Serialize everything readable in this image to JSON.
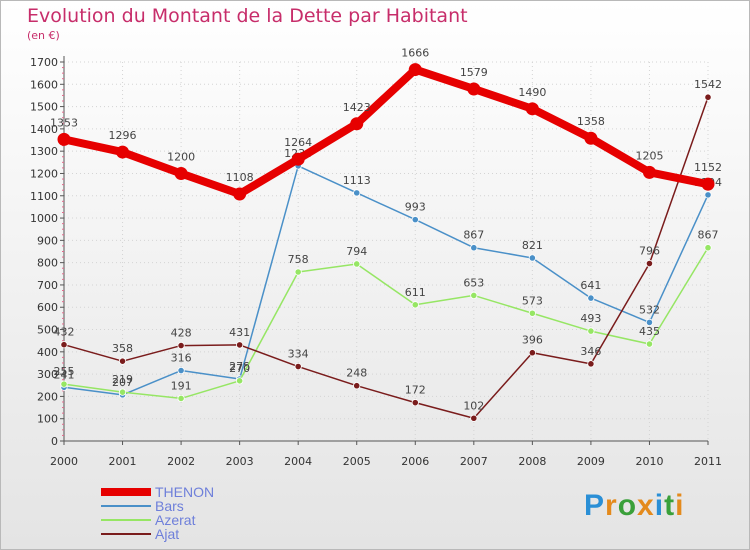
{
  "chart_data": {
    "type": "line",
    "title": "Evolution du Montant de la Dette par Habitant",
    "unit": "(en €)",
    "x": [
      "2000",
      "2001",
      "2002",
      "2003",
      "2004",
      "2005",
      "2006",
      "2007",
      "2008",
      "2009",
      "2010",
      "2011"
    ],
    "ylim": [
      0,
      1700
    ],
    "yticks": [
      0,
      100,
      200,
      300,
      400,
      500,
      600,
      700,
      800,
      900,
      1000,
      1100,
      1200,
      1300,
      1400,
      1500,
      1600,
      1700
    ],
    "grid": true,
    "legend_position": "bottom-left",
    "series": [
      {
        "name": "THENON",
        "color": "#e60000",
        "values": [
          1353,
          1296,
          1200,
          1108,
          1264,
          1423,
          1666,
          1579,
          1490,
          1358,
          1205,
          1152
        ]
      },
      {
        "name": "Bars",
        "color": "#4a90c8",
        "values": [
          241,
          207,
          316,
          278,
          1234,
          1113,
          993,
          867,
          821,
          641,
          532,
          1104
        ]
      },
      {
        "name": "Azerat",
        "color": "#96e664",
        "values": [
          255,
          219,
          191,
          270,
          758,
          794,
          611,
          653,
          573,
          493,
          435,
          867
        ]
      },
      {
        "name": "Ajat",
        "color": "#7a1c1c",
        "values": [
          432,
          358,
          428,
          431,
          334,
          248,
          172,
          102,
          396,
          346,
          796,
          1542
        ]
      }
    ]
  },
  "brand": {
    "letters": [
      "P",
      "r",
      "o",
      "x",
      "i",
      "t",
      "i"
    ],
    "colors": [
      "#2a8fd6",
      "#e48a1c",
      "#3aa03a",
      "#e48a1c",
      "#2a8fd6",
      "#3aa03a",
      "#e48a1c"
    ]
  }
}
